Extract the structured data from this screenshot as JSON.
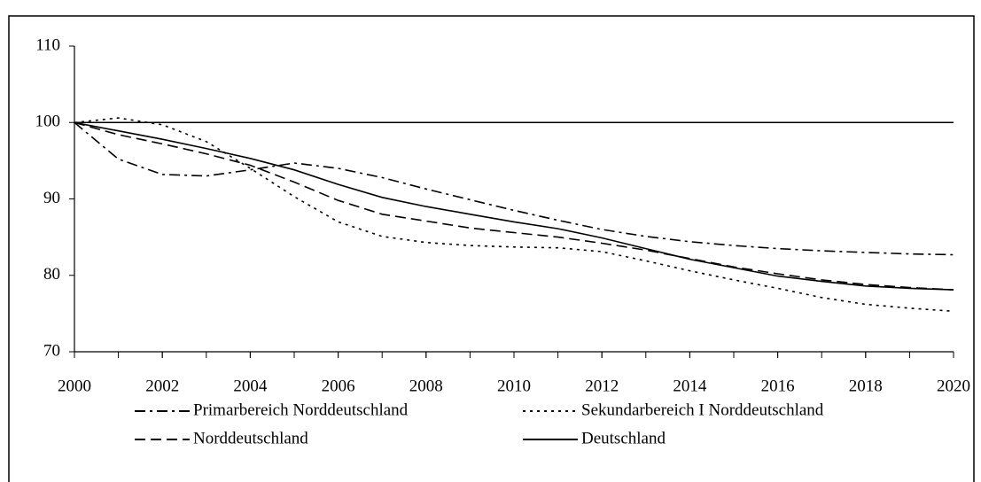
{
  "chart_data": {
    "type": "line",
    "x": [
      2000,
      2001,
      2002,
      2003,
      2004,
      2005,
      2006,
      2007,
      2008,
      2009,
      2010,
      2011,
      2012,
      2013,
      2014,
      2015,
      2016,
      2017,
      2018,
      2019,
      2020
    ],
    "series": [
      {
        "name": "Primarbereich Norddeutschland",
        "color": "#000000",
        "style": "dashdot",
        "values": [
          100,
          95.2,
          93.2,
          93,
          93.8,
          94.7,
          94,
          92.8,
          91.3,
          89.9,
          88.5,
          87.2,
          86,
          85.1,
          84.4,
          83.9,
          83.5,
          83.2,
          83,
          82.8,
          82.7
        ]
      },
      {
        "name": "Sekundarbereich I Norddeutschland",
        "color": "#000000",
        "style": "dotted",
        "values": [
          100,
          100.6,
          99.7,
          97.5,
          94,
          90.3,
          87,
          85.1,
          84.3,
          83.9,
          83.7,
          83.6,
          83.1,
          81.9,
          80.6,
          79.4,
          78.3,
          77.1,
          76.2,
          75.7,
          75.3
        ]
      },
      {
        "name": "Norddeutschland",
        "color": "#000000",
        "style": "dashed",
        "values": [
          100,
          98.4,
          97.2,
          95.9,
          94.4,
          92.2,
          89.8,
          88,
          87.1,
          86.2,
          85.6,
          85,
          84.2,
          83.3,
          82.2,
          81.1,
          80.2,
          79.4,
          78.8,
          78.4,
          78.1
        ]
      },
      {
        "name": "Deutschland",
        "color": "#000000",
        "style": "solid",
        "values": [
          100,
          98.9,
          97.8,
          96.6,
          95.3,
          93.8,
          91.9,
          90.2,
          89,
          88,
          87,
          86.1,
          84.9,
          83.5,
          82.1,
          81,
          79.9,
          79.2,
          78.6,
          78.3,
          78.1
        ]
      }
    ],
    "reference_line": 100,
    "xlim": [
      2000,
      2020
    ],
    "xticks": [
      2000,
      2002,
      2004,
      2006,
      2008,
      2010,
      2012,
      2014,
      2016,
      2018,
      2020
    ],
    "ylim": [
      70,
      110
    ],
    "yticks": [
      70,
      80,
      90,
      100,
      110
    ],
    "legend": "bottom",
    "grid": false
  }
}
